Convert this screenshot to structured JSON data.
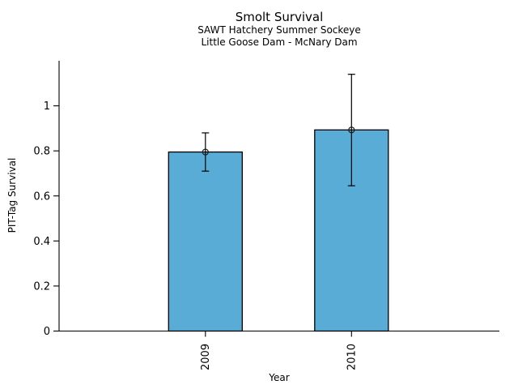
{
  "header": {
    "title": "Smolt Survival",
    "subtitle1": "SAWT Hatchery Summer Sockeye",
    "subtitle2": "Little Goose Dam - McNary Dam"
  },
  "chart_data": {
    "type": "bar",
    "title": "Smolt Survival",
    "subtitles": [
      "SAWT Hatchery Summer Sockeye",
      "Little Goose Dam - McNary Dam"
    ],
    "categories": [
      "2009",
      "2010"
    ],
    "values": [
      0.795,
      0.893
    ],
    "error_bars": {
      "lower": [
        0.71,
        0.645
      ],
      "upper": [
        0.88,
        1.14
      ]
    },
    "xlabel": "Year",
    "ylabel": "PIT-Tag Survival",
    "yticks": [
      0,
      0.2,
      0.4,
      0.6,
      0.8,
      1
    ],
    "ytick_labels": [
      "0",
      "0.2",
      "0.4",
      "0.6",
      "0.8",
      "1"
    ],
    "ylim": [
      0,
      1.2
    ],
    "xtick_rotation": 90,
    "grid": false,
    "legend": null,
    "marker": "open-circle",
    "colors": {
      "bar_fill": "#58acd6",
      "bar_edge": "#000000",
      "error_bar": "#000000",
      "marker_edge": "#1a1a1a",
      "axis": "#000000",
      "background": "#ffffff"
    }
  }
}
